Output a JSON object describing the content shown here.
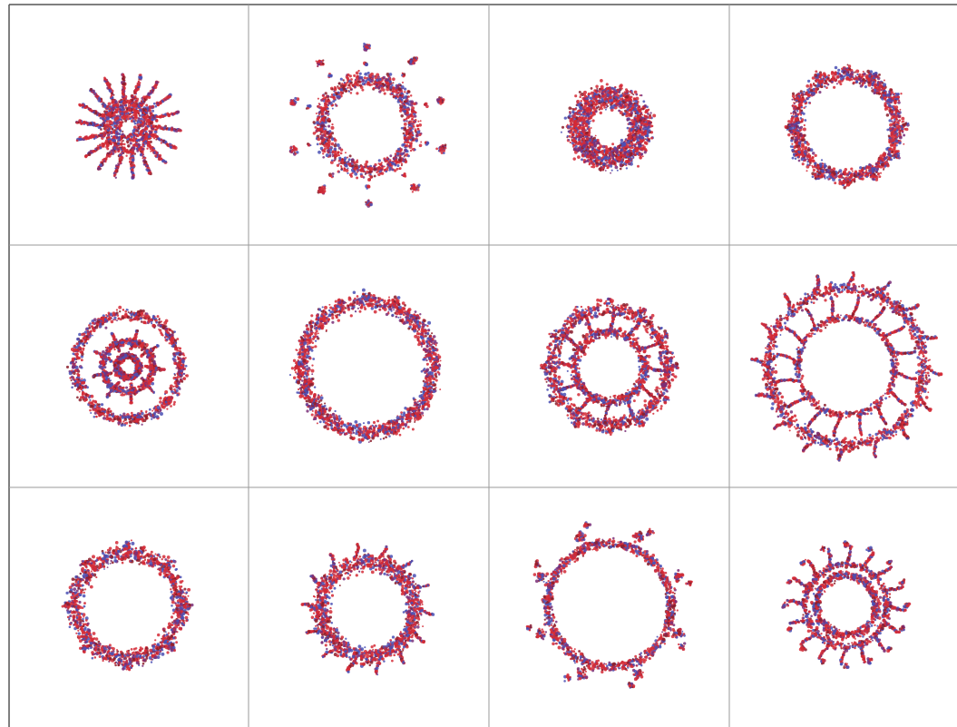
{
  "colors": {
    "background": "#ffffff",
    "grid_line": "#9a9a9a",
    "frame_line": "#555555",
    "red": "#d42a36",
    "dark_red": "#8c1d2a",
    "blue": "#4a50b4",
    "purple": "#7a2f78"
  },
  "panel_grid": {
    "rows": 3,
    "columns": 4
  },
  "panels": [
    {
      "ring_style": "spiky-sunburst",
      "unit_count": 18
    },
    {
      "ring_style": "ring-with-satellite-clusters",
      "unit_count": 10
    },
    {
      "ring_style": "dense-small-ring",
      "unit_count": 12
    },
    {
      "ring_style": "lobed-ring",
      "unit_count": 12
    },
    {
      "ring_style": "double-ring-with-dense-core",
      "unit_count": 9
    },
    {
      "ring_style": "large-thick-ring",
      "unit_count": 16
    },
    {
      "ring_style": "double-ring",
      "unit_count": 12
    },
    {
      "ring_style": "sparse-double-ring",
      "unit_count": 16
    },
    {
      "ring_style": "lobed-ring",
      "unit_count": 8
    },
    {
      "ring_style": "ring-with-short-spikes",
      "unit_count": 14
    },
    {
      "ring_style": "ring-with-large-lobes",
      "unit_count": 8
    },
    {
      "ring_style": "ring-with-branched-spikes",
      "unit_count": 16
    }
  ]
}
